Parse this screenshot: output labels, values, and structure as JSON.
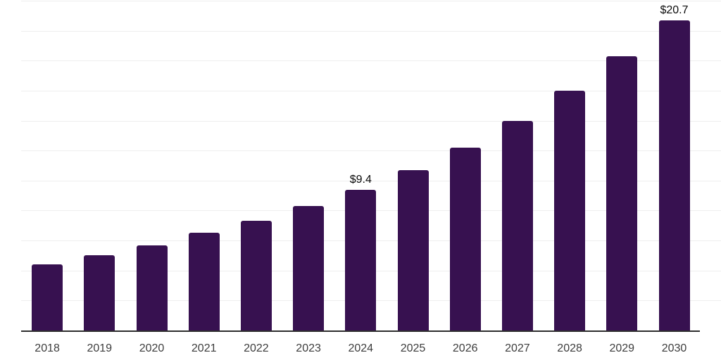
{
  "chart_data": {
    "type": "bar",
    "title": "",
    "xlabel": "",
    "ylabel": "",
    "categories": [
      "2018",
      "2019",
      "2020",
      "2021",
      "2022",
      "2023",
      "2024",
      "2025",
      "2026",
      "2027",
      "2028",
      "2029",
      "2030"
    ],
    "values": [
      4.4,
      5.0,
      5.7,
      6.5,
      7.3,
      8.3,
      9.4,
      10.7,
      12.2,
      14.0,
      16.0,
      18.3,
      20.7
    ],
    "point_labels": [
      "",
      "",
      "",
      "",
      "",
      "",
      "$9.4",
      "",
      "",
      "",
      "",
      "",
      "$20.7"
    ],
    "ylim": [
      0,
      22.05
    ],
    "grid": "horizontal",
    "grid_step": 2,
    "legend": "none",
    "colors": {
      "bar": "#371150",
      "grid": "#eeeeee",
      "axis_line": "#2e2e2e",
      "tick_label": "#3d3d3d",
      "point_label": "#0a0a0a",
      "background": "#ffffff"
    }
  }
}
